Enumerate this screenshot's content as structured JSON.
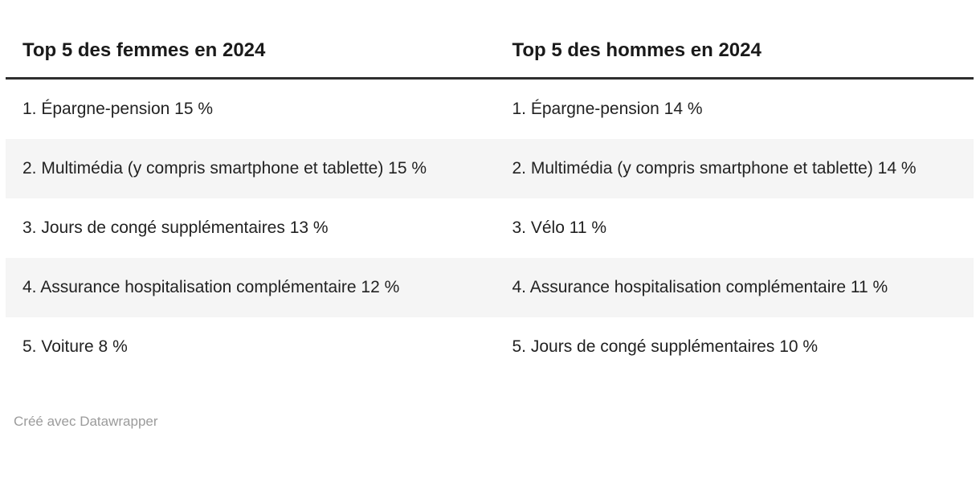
{
  "chart_data": {
    "type": "table",
    "columns": [
      "Top 5 des femmes en 2024",
      "Top 5 des hommes en 2024"
    ],
    "rows": [
      [
        "1. Épargne-pension 15 %",
        "1. Épargne-pension 14 %"
      ],
      [
        "2. Multimédia (y compris smartphone et tablette) 15 %",
        "2. Multimédia (y compris smartphone et tablette) 14 %"
      ],
      [
        "3. Jours de congé supplémentaires 13 %",
        "3. Vélo 11 %"
      ],
      [
        "4. Assurance hospitalisation complémentaire 12 %",
        "4. Assurance hospitalisation complémentaire 11 %"
      ],
      [
        "5. Voiture 8 %",
        "5. Jours de congé supplémentaires 10 %"
      ]
    ],
    "series": [
      {
        "name": "Top 5 des femmes en 2024",
        "items": [
          {
            "rank": 1,
            "label": "Épargne-pension",
            "value_pct": 15
          },
          {
            "rank": 2,
            "label": "Multimédia (y compris smartphone et tablette)",
            "value_pct": 15
          },
          {
            "rank": 3,
            "label": "Jours de congé supplémentaires",
            "value_pct": 13
          },
          {
            "rank": 4,
            "label": "Assurance hospitalisation complémentaire",
            "value_pct": 12
          },
          {
            "rank": 5,
            "label": "Voiture",
            "value_pct": 8
          }
        ]
      },
      {
        "name": "Top 5 des hommes en 2024",
        "items": [
          {
            "rank": 1,
            "label": "Épargne-pension",
            "value_pct": 14
          },
          {
            "rank": 2,
            "label": "Multimédia (y compris smartphone et tablette)",
            "value_pct": 14
          },
          {
            "rank": 3,
            "label": "Vélo",
            "value_pct": 11
          },
          {
            "rank": 4,
            "label": "Assurance hospitalisation complémentaire",
            "value_pct": 11
          },
          {
            "rank": 5,
            "label": "Jours de congé supplémentaires",
            "value_pct": 10
          }
        ]
      }
    ],
    "layout_hints": {
      "striped_rows": "even rows shaded",
      "header_rule": "3px solid dark line under headers",
      "column_count": 2
    }
  },
  "footer": {
    "attribution": "Créé avec Datawrapper"
  },
  "colors": {
    "background": "#ffffff",
    "stripe": "#f5f5f5",
    "header_text": "#1a1a1a",
    "body_text": "#222222",
    "header_border": "#2e2e2e",
    "footer_text": "#9b9b9b"
  }
}
